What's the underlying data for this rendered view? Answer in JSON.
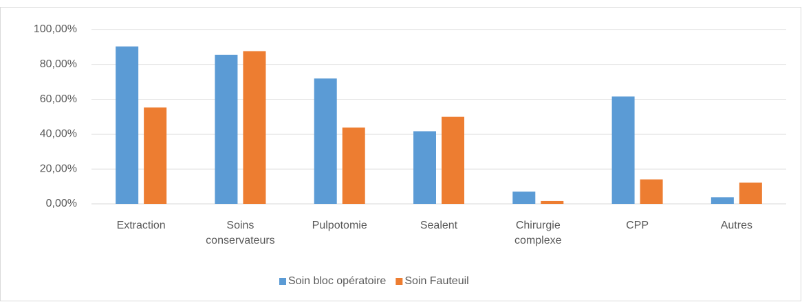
{
  "chart_data": {
    "type": "bar",
    "categories": [
      "Extraction",
      "Soins conservateurs",
      "Pulpotomie",
      "Sealent",
      "Chirurgie complexe",
      "CPP",
      "Autres"
    ],
    "series": [
      {
        "name": "Soin bloc opératoire",
        "color": "#5b9bd5",
        "values": [
          90.3,
          85.5,
          71.9,
          41.6,
          7.0,
          61.6,
          3.8
        ]
      },
      {
        "name": "Soin Fauteuil",
        "color": "#ed7d31",
        "values": [
          55.3,
          87.6,
          43.8,
          50.0,
          1.6,
          14.0,
          12.2
        ]
      }
    ],
    "ylim": [
      0,
      100
    ],
    "yticks": [
      {
        "value": 0,
        "label": "0,00%"
      },
      {
        "value": 20,
        "label": "20,00%"
      },
      {
        "value": 40,
        "label": "40,00%"
      },
      {
        "value": 60,
        "label": "60,00%"
      },
      {
        "value": 80,
        "label": "80,00%"
      },
      {
        "value": 100,
        "label": "100,00%"
      }
    ],
    "grid": true,
    "legend": "bottom"
  }
}
